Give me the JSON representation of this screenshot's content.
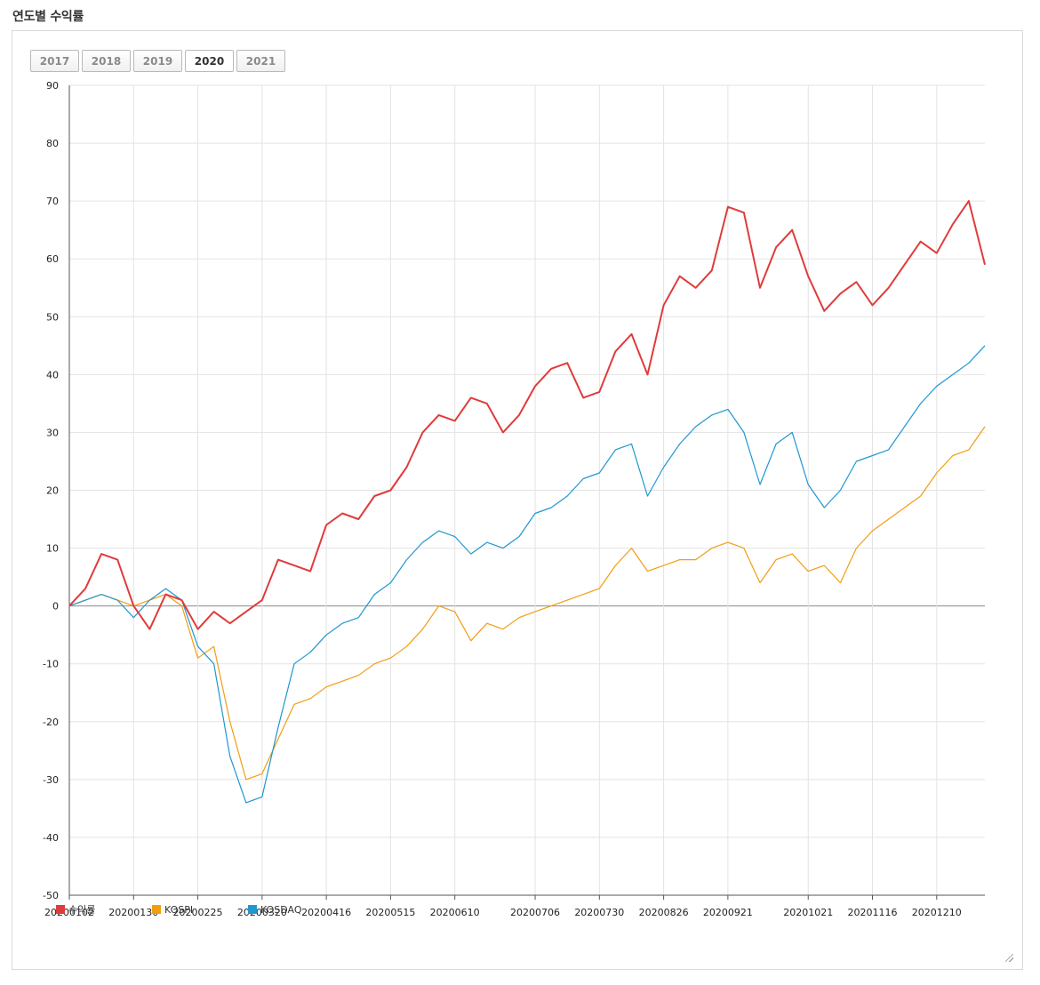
{
  "page": {
    "title": "연도별 수익률"
  },
  "year_tabs": [
    {
      "label": "2017",
      "active": false
    },
    {
      "label": "2018",
      "active": false
    },
    {
      "label": "2019",
      "active": false
    },
    {
      "label": "2020",
      "active": true
    },
    {
      "label": "2021",
      "active": false
    }
  ],
  "legend": [
    {
      "label": "수익률",
      "color": "#e03b3b"
    },
    {
      "label": "KOSPI",
      "color": "#f39c12"
    },
    {
      "label": "KOSDAQ",
      "color": "#1f97d0"
    }
  ],
  "chart_data": {
    "type": "line",
    "title": "",
    "xlabel": "",
    "ylabel": "",
    "ylim": [
      -50,
      90
    ],
    "yticks": [
      90,
      80,
      70,
      60,
      50,
      40,
      30,
      20,
      10,
      0,
      -10,
      -20,
      -30,
      -40,
      -50
    ],
    "x_tick_labels": [
      "20200102",
      "20200130",
      "20200225",
      "20200320",
      "20200416",
      "20200515",
      "20200610",
      "20200706",
      "20200730",
      "20200826",
      "20200921",
      "20201021",
      "20201116",
      "20201210"
    ],
    "grid": true,
    "legend_position": "bottom-left",
    "x": [
      "20200102",
      "20200108",
      "20200115",
      "20200122",
      "20200130",
      "20200205",
      "20200212",
      "20200219",
      "20200225",
      "20200304",
      "20200311",
      "20200318",
      "20200320",
      "20200325",
      "20200401",
      "20200408",
      "20200416",
      "20200422",
      "20200429",
      "20200508",
      "20200515",
      "20200521",
      "20200528",
      "20200604",
      "20200610",
      "20200612",
      "20200618",
      "20200625",
      "20200701",
      "20200706",
      "20200713",
      "20200720",
      "20200724",
      "20200730",
      "20200806",
      "20200813",
      "20200819",
      "20200826",
      "20200901",
      "20200908",
      "20200914",
      "20200921",
      "20200924",
      "20201005",
      "20201012",
      "20201016",
      "20201021",
      "20201027",
      "20201103",
      "20201109",
      "20201116",
      "20201120",
      "20201126",
      "20201202",
      "20201210",
      "20201216",
      "20201222",
      "20201230"
    ],
    "series": [
      {
        "name": "수익률",
        "color": "#e03b3b",
        "values": [
          0,
          3,
          9,
          8,
          0,
          -4,
          2,
          1,
          -4,
          -1,
          -3,
          -1,
          1,
          8,
          7,
          6,
          14,
          16,
          15,
          19,
          20,
          24,
          30,
          33,
          32,
          36,
          35,
          30,
          33,
          38,
          41,
          42,
          36,
          37,
          44,
          47,
          40,
          52,
          57,
          55,
          58,
          69,
          68,
          55,
          62,
          65,
          57,
          51,
          54,
          56,
          52,
          55,
          59,
          63,
          61,
          66,
          70,
          59
        ]
      },
      {
        "name": "KOSPI",
        "color": "#f39c12",
        "values": [
          0,
          1,
          2,
          1,
          0,
          1,
          2,
          0,
          -9,
          -7,
          -20,
          -30,
          -29,
          -23,
          -17,
          -16,
          -14,
          -13,
          -12,
          -10,
          -9,
          -7,
          -4,
          0,
          -1,
          -6,
          -3,
          -4,
          -2,
          -1,
          0,
          1,
          2,
          3,
          7,
          10,
          6,
          7,
          8,
          8,
          10,
          11,
          10,
          4,
          8,
          9,
          6,
          7,
          4,
          10,
          13,
          15,
          17,
          19,
          23,
          26,
          27,
          31
        ]
      },
      {
        "name": "KOSDAQ",
        "color": "#1f97d0",
        "values": [
          0,
          1,
          2,
          1,
          -2,
          1,
          3,
          1,
          -7,
          -10,
          -26,
          -34,
          -33,
          -21,
          -10,
          -8,
          -5,
          -3,
          -2,
          2,
          4,
          8,
          11,
          13,
          12,
          9,
          11,
          10,
          12,
          16,
          17,
          19,
          22,
          23,
          27,
          28,
          19,
          24,
          28,
          31,
          33,
          34,
          30,
          21,
          28,
          30,
          21,
          17,
          20,
          25,
          26,
          27,
          31,
          35,
          38,
          40,
          42,
          45
        ]
      }
    ]
  }
}
